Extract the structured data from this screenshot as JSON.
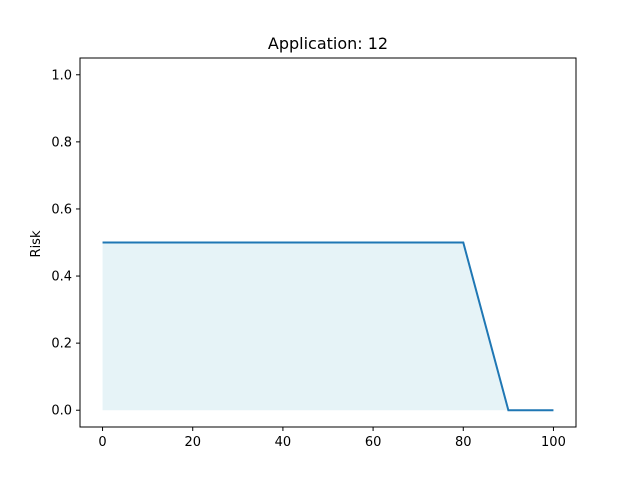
{
  "chart_data": {
    "type": "area",
    "title": "Application: 12",
    "xlabel": "",
    "ylabel": "Risk",
    "xlim": [
      -5,
      105
    ],
    "ylim": [
      -0.05,
      1.05
    ],
    "xticks": [
      0,
      20,
      40,
      60,
      80,
      100
    ],
    "yticks": [
      0.0,
      0.2,
      0.4,
      0.6,
      0.8,
      1.0
    ],
    "xtick_labels": [
      "0",
      "20",
      "40",
      "60",
      "80",
      "100"
    ],
    "ytick_labels": [
      "0.0",
      "0.2",
      "0.4",
      "0.6",
      "0.8",
      "1.0"
    ],
    "grid": false,
    "series": [
      {
        "x": [
          0,
          80,
          90,
          100
        ],
        "y": [
          0.5,
          0.5,
          0.0,
          0.0
        ],
        "line_color": "#1f77b4",
        "fill_color": "#add8e6"
      }
    ]
  }
}
